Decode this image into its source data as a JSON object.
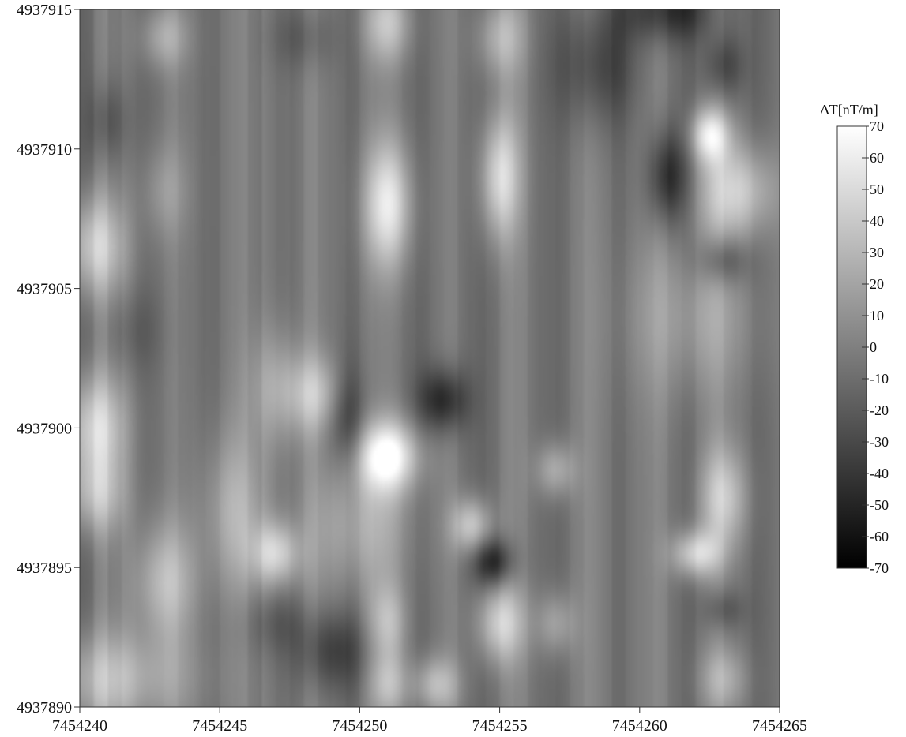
{
  "chart_data": {
    "type": "heatmap",
    "title": "",
    "xlabel": "",
    "ylabel": "",
    "xlim": [
      7454240,
      7454265
    ],
    "ylim": [
      4937890,
      4937915
    ],
    "x_ticks": [
      "7454240",
      "7454245",
      "7454250",
      "7454255",
      "7454260",
      "7454265"
    ],
    "y_ticks": [
      "4937915",
      "4937910",
      "4937905",
      "4937900",
      "4937895",
      "4937890"
    ],
    "colorbar": {
      "label": "ΔT[nT/m]",
      "range": [
        -70,
        70
      ],
      "ticks": [
        "70",
        "60",
        "50",
        "40",
        "30",
        "20",
        "10",
        "0",
        "-10",
        "-20",
        "-30",
        "-40",
        "-50",
        "-60",
        "-70"
      ],
      "low_color": "#000000",
      "high_color": "#ffffff"
    },
    "colormap": "grayscale",
    "grid": false,
    "background_value": -5,
    "anomalies": [
      {
        "x": 7454240.5,
        "y": 4937906.5,
        "value": 45,
        "sx": 0.8,
        "sy": 1.3
      },
      {
        "x": 7454240.5,
        "y": 4937900.0,
        "value": 50,
        "sx": 0.8,
        "sy": 1.4
      },
      {
        "x": 7454240.5,
        "y": 4937897.5,
        "value": 30,
        "sx": 0.8,
        "sy": 1.0
      },
      {
        "x": 7454241.0,
        "y": 4937891.0,
        "value": 35,
        "sx": 2.0,
        "sy": 1.2
      },
      {
        "x": 7454243.0,
        "y": 4937894.5,
        "value": 35,
        "sx": 0.8,
        "sy": 1.5
      },
      {
        "x": 7454243.0,
        "y": 4937914.0,
        "value": 25,
        "sx": 0.6,
        "sy": 0.8
      },
      {
        "x": 7454243.0,
        "y": 4937908.5,
        "value": 15,
        "sx": 0.6,
        "sy": 1.2
      },
      {
        "x": 7454241.0,
        "y": 4937911.0,
        "value": -25,
        "sx": 0.5,
        "sy": 1.0
      },
      {
        "x": 7454242.0,
        "y": 4937903.5,
        "value": -15,
        "sx": 0.7,
        "sy": 1.0
      },
      {
        "x": 7454245.5,
        "y": 4937897.0,
        "value": 25,
        "sx": 0.8,
        "sy": 2.0
      },
      {
        "x": 7454247.0,
        "y": 4937895.5,
        "value": 45,
        "sx": 0.6,
        "sy": 0.8
      },
      {
        "x": 7454247.0,
        "y": 4937901.5,
        "value": 20,
        "sx": 0.7,
        "sy": 1.5
      },
      {
        "x": 7454247.0,
        "y": 4937893.0,
        "value": -20,
        "sx": 0.8,
        "sy": 0.8
      },
      {
        "x": 7454248.5,
        "y": 4937901.2,
        "value": 35,
        "sx": 0.8,
        "sy": 1.0
      },
      {
        "x": 7454249.5,
        "y": 4937900.5,
        "value": -40,
        "sx": 0.5,
        "sy": 1.3
      },
      {
        "x": 7454249.0,
        "y": 4937892.0,
        "value": -35,
        "sx": 0.9,
        "sy": 1.0
      },
      {
        "x": 7454248.0,
        "y": 4937914.0,
        "value": -20,
        "sx": 0.8,
        "sy": 0.8
      },
      {
        "x": 7454250.0,
        "y": 4937896.5,
        "value": 25,
        "sx": 1.3,
        "sy": 1.7
      },
      {
        "x": 7454251.0,
        "y": 4937899.0,
        "value": 70,
        "sx": 0.8,
        "sy": 0.9
      },
      {
        "x": 7454251.0,
        "y": 4937908.0,
        "value": 55,
        "sx": 0.6,
        "sy": 1.6
      },
      {
        "x": 7454251.0,
        "y": 4937914.5,
        "value": 35,
        "sx": 0.6,
        "sy": 1.0
      },
      {
        "x": 7454251.0,
        "y": 4937893.0,
        "value": 30,
        "sx": 0.5,
        "sy": 1.0
      },
      {
        "x": 7454251.0,
        "y": 4937890.8,
        "value": 30,
        "sx": 0.5,
        "sy": 0.8
      },
      {
        "x": 7454252.7,
        "y": 4937890.8,
        "value": 35,
        "sx": 0.6,
        "sy": 0.7
      },
      {
        "x": 7454253.0,
        "y": 4937901.0,
        "value": -50,
        "sx": 0.6,
        "sy": 0.8
      },
      {
        "x": 7454254.0,
        "y": 4937896.5,
        "value": 45,
        "sx": 0.5,
        "sy": 0.7
      },
      {
        "x": 7454254.8,
        "y": 4937895.2,
        "value": -50,
        "sx": 0.5,
        "sy": 0.6
      },
      {
        "x": 7454255.0,
        "y": 4937893.0,
        "value": 45,
        "sx": 0.6,
        "sy": 1.0
      },
      {
        "x": 7454255.0,
        "y": 4937909.0,
        "value": 50,
        "sx": 0.5,
        "sy": 1.6
      },
      {
        "x": 7454255.0,
        "y": 4937914.0,
        "value": 30,
        "sx": 0.6,
        "sy": 1.0
      },
      {
        "x": 7454257.0,
        "y": 4937898.5,
        "value": 30,
        "sx": 0.5,
        "sy": 0.7
      },
      {
        "x": 7454257.0,
        "y": 4937893.0,
        "value": 25,
        "sx": 0.5,
        "sy": 0.8
      },
      {
        "x": 7454258.5,
        "y": 4937913.0,
        "value": -35,
        "sx": 1.0,
        "sy": 1.5
      },
      {
        "x": 7454261.0,
        "y": 4937915.0,
        "value": -45,
        "sx": 1.2,
        "sy": 0.8
      },
      {
        "x": 7454261.0,
        "y": 4937909.0,
        "value": -50,
        "sx": 0.5,
        "sy": 1.2
      },
      {
        "x": 7454262.0,
        "y": 4937904.0,
        "value": 20,
        "sx": 1.6,
        "sy": 2.0
      },
      {
        "x": 7454262.5,
        "y": 4937910.5,
        "value": 55,
        "sx": 0.5,
        "sy": 0.7
      },
      {
        "x": 7454263.5,
        "y": 4937908.5,
        "value": 45,
        "sx": 1.0,
        "sy": 1.2
      },
      {
        "x": 7454263.0,
        "y": 4937906.0,
        "value": -35,
        "sx": 0.6,
        "sy": 0.6
      },
      {
        "x": 7454263.0,
        "y": 4937913.0,
        "value": -35,
        "sx": 0.5,
        "sy": 0.8
      },
      {
        "x": 7454263.0,
        "y": 4937897.5,
        "value": 40,
        "sx": 0.6,
        "sy": 1.3
      },
      {
        "x": 7454262.0,
        "y": 4937895.5,
        "value": 50,
        "sx": 0.6,
        "sy": 0.6
      },
      {
        "x": 7454263.0,
        "y": 4937893.5,
        "value": -25,
        "sx": 0.5,
        "sy": 0.5
      },
      {
        "x": 7454263.0,
        "y": 4937891.0,
        "value": 25,
        "sx": 0.6,
        "sy": 0.8
      }
    ]
  }
}
